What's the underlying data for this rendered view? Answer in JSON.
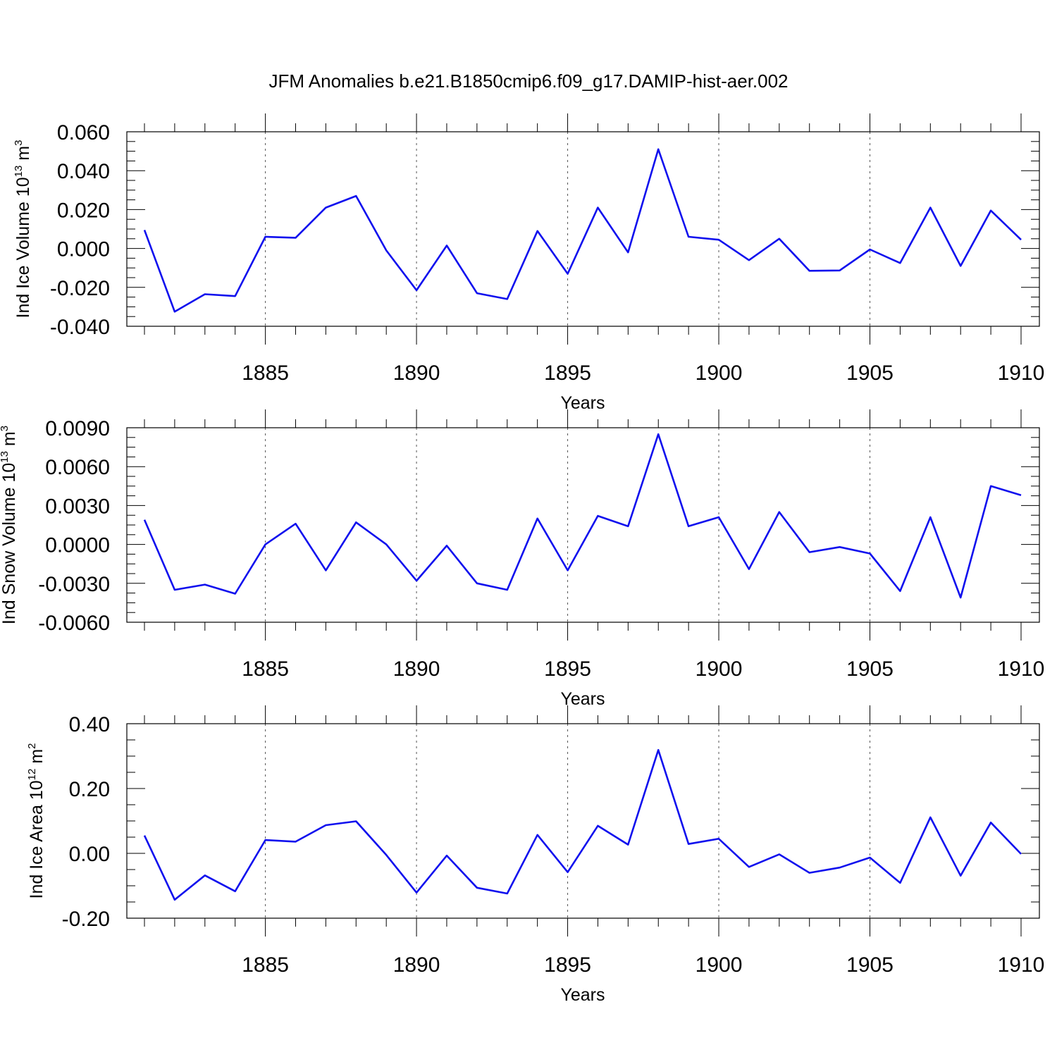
{
  "title": "JFM Anomalies b.e21.B1850cmip6.f09_g17.DAMIP-hist-aer.002",
  "series_color": "#1010ee",
  "chart_data": [
    {
      "type": "line",
      "ylabel": {
        "prefix": "Ind Ice Volume 10",
        "exponent": "13",
        "unit": " m",
        "unit_exponent": "3"
      },
      "xlabel": "Years",
      "xlim": [
        1881,
        1910
      ],
      "ylim": [
        -0.04,
        0.06
      ],
      "yticks": [
        -0.04,
        -0.02,
        0.0,
        0.02,
        0.04,
        0.06
      ],
      "ytick_labels": [
        "-0.040",
        "-0.020",
        "0.000",
        "0.020",
        "0.040",
        "0.060"
      ],
      "xticks": [
        1885,
        1890,
        1895,
        1900,
        1905,
        1910
      ],
      "xtick_labels": [
        "1885",
        "1890",
        "1895",
        "1900",
        "1905",
        "1910"
      ],
      "grid_x": [
        1885,
        1890,
        1895,
        1900,
        1905
      ],
      "x": [
        1881,
        1882,
        1883,
        1884,
        1885,
        1886,
        1887,
        1888,
        1889,
        1890,
        1891,
        1892,
        1893,
        1894,
        1895,
        1896,
        1897,
        1898,
        1899,
        1900,
        1901,
        1902,
        1903,
        1904,
        1905,
        1906,
        1907,
        1908,
        1909,
        1910
      ],
      "values": [
        0.0095,
        -0.0325,
        -0.0235,
        -0.0245,
        0.006,
        0.0055,
        0.021,
        0.027,
        -0.001,
        -0.0215,
        0.0015,
        -0.023,
        -0.026,
        0.009,
        -0.013,
        0.021,
        -0.002,
        0.051,
        0.006,
        0.0045,
        -0.006,
        0.005,
        -0.0115,
        -0.0113,
        -0.0005,
        -0.0075,
        0.021,
        -0.009,
        0.0195,
        0.0045
      ]
    },
    {
      "type": "line",
      "ylabel": {
        "prefix": "Ind Snow Volume 10",
        "exponent": "13",
        "unit": " m",
        "unit_exponent": "3"
      },
      "xlabel": "Years",
      "xlim": [
        1881,
        1910
      ],
      "ylim": [
        -0.006,
        0.009
      ],
      "yticks": [
        -0.006,
        -0.003,
        0.0,
        0.003,
        0.006,
        0.009
      ],
      "ytick_labels": [
        "-0.0060",
        "-0.0030",
        "0.0000",
        "0.0030",
        "0.0060",
        "0.0090"
      ],
      "xticks": [
        1885,
        1890,
        1895,
        1900,
        1905,
        1910
      ],
      "xtick_labels": [
        "1885",
        "1890",
        "1895",
        "1900",
        "1905",
        "1910"
      ],
      "grid_x": [
        1885,
        1890,
        1895,
        1900,
        1905
      ],
      "x": [
        1881,
        1882,
        1883,
        1884,
        1885,
        1886,
        1887,
        1888,
        1889,
        1890,
        1891,
        1892,
        1893,
        1894,
        1895,
        1896,
        1897,
        1898,
        1899,
        1900,
        1901,
        1902,
        1903,
        1904,
        1905,
        1906,
        1907,
        1908,
        1909,
        1910
      ],
      "values": [
        0.0019,
        -0.0035,
        -0.0031,
        -0.0038,
        0.0,
        0.0016,
        -0.002,
        0.0017,
        0.0,
        -0.0028,
        -0.0001,
        -0.003,
        -0.0035,
        0.002,
        -0.002,
        0.0022,
        0.0014,
        0.0085,
        0.0014,
        0.0021,
        -0.0019,
        0.0025,
        -0.0006,
        -0.0002,
        -0.0007,
        -0.0036,
        0.0021,
        -0.0041,
        0.0045,
        0.0038
      ]
    },
    {
      "type": "line",
      "ylabel": {
        "prefix": "Ind Ice Area 10",
        "exponent": "12",
        "unit": " m",
        "unit_exponent": "2"
      },
      "xlabel": "Years",
      "xlim": [
        1881,
        1910
      ],
      "ylim": [
        -0.2,
        0.4
      ],
      "yticks": [
        -0.2,
        0.0,
        0.2,
        0.4
      ],
      "ytick_labels": [
        "-0.20",
        "0.00",
        "0.20",
        "0.40"
      ],
      "xticks": [
        1885,
        1890,
        1895,
        1900,
        1905,
        1910
      ],
      "xtick_labels": [
        "1885",
        "1890",
        "1895",
        "1900",
        "1905",
        "1910"
      ],
      "grid_x": [
        1885,
        1890,
        1895,
        1900,
        1905
      ],
      "x": [
        1881,
        1882,
        1883,
        1884,
        1885,
        1886,
        1887,
        1888,
        1889,
        1890,
        1891,
        1892,
        1893,
        1894,
        1895,
        1896,
        1897,
        1898,
        1899,
        1900,
        1901,
        1902,
        1903,
        1904,
        1905,
        1906,
        1907,
        1908,
        1909,
        1910
      ],
      "values": [
        0.055,
        -0.143,
        -0.068,
        -0.117,
        0.041,
        0.036,
        0.087,
        0.099,
        -0.005,
        -0.121,
        -0.007,
        -0.106,
        -0.124,
        0.057,
        -0.058,
        0.085,
        0.027,
        0.319,
        0.029,
        0.045,
        -0.042,
        -0.003,
        -0.06,
        -0.044,
        -0.013,
        -0.091,
        0.111,
        -0.069,
        0.095,
        -0.002
      ]
    }
  ]
}
